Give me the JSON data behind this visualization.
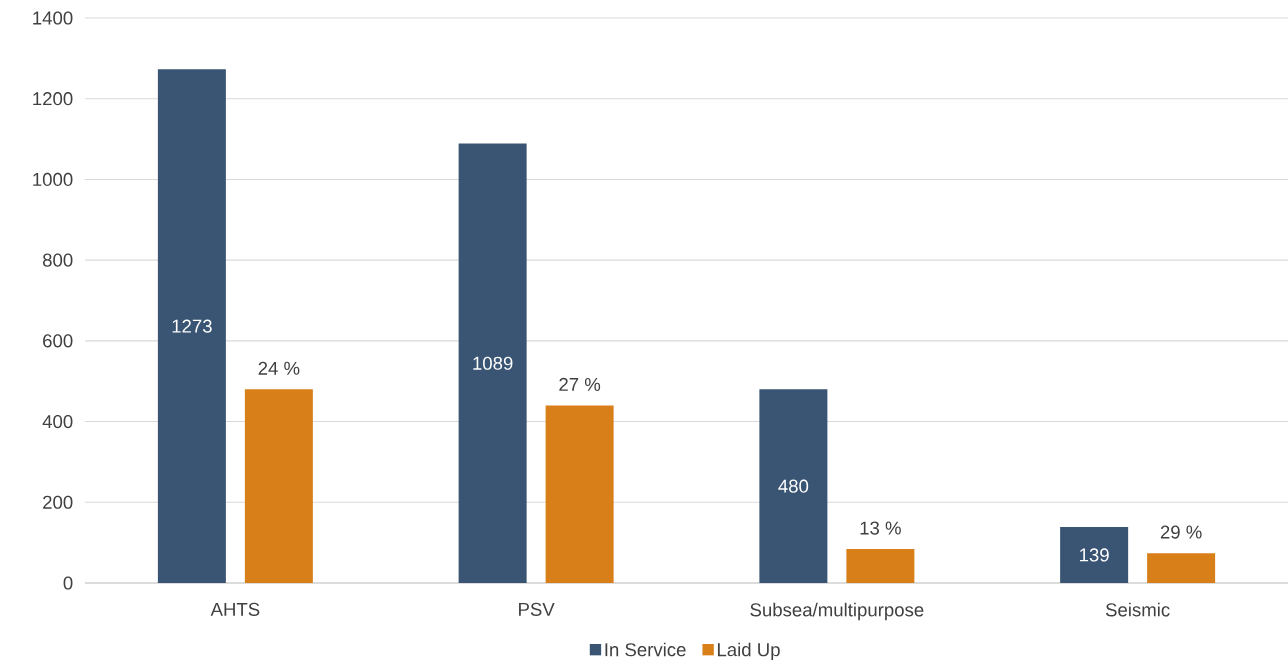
{
  "chart_data": {
    "type": "bar",
    "categories": [
      "AHTS",
      "PSV",
      "Subsea/multipurpose",
      "Seismic"
    ],
    "series": [
      {
        "name": "In Service",
        "color": "#3a5573",
        "values": [
          1273,
          1089,
          480,
          139
        ],
        "value_labels": [
          "1273",
          "1089",
          "480",
          "139"
        ]
      },
      {
        "name": "Laid Up",
        "color": "#d97f1a",
        "values": [
          480,
          440,
          84,
          74
        ]
      }
    ],
    "annotations": [
      "24 %",
      "27 %",
      "13 %",
      "29 %"
    ],
    "ylim": [
      0,
      1400
    ],
    "yticks": [
      0,
      200,
      400,
      600,
      800,
      1000,
      1200,
      1400
    ],
    "grid": "y",
    "legend": "bottom"
  }
}
